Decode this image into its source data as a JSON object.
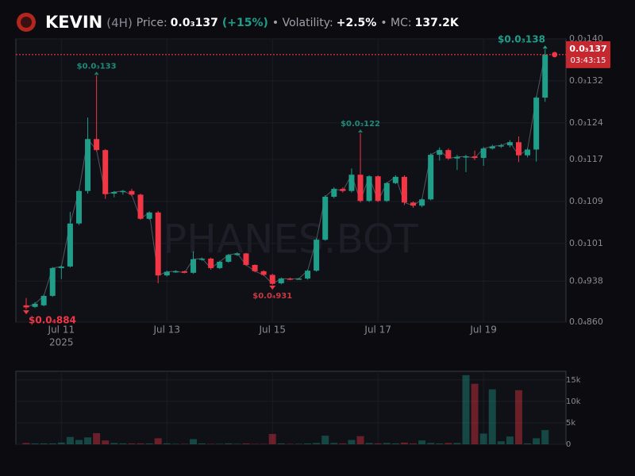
{
  "header": {
    "name": "KEVIN",
    "interval": "(4H)",
    "price_label": "Price:",
    "price": "0.0₃137",
    "change": "(+15%)",
    "volatility_label": "• Volatility:",
    "volatility": "+2.5%",
    "mc_label": "• MC:",
    "mc": "137.2K"
  },
  "watermark": "PHANES.BOT",
  "chart_data": {
    "type": "candlestick",
    "categories": [
      null,
      null,
      null,
      null,
      "Jul 11",
      null,
      null,
      null,
      null,
      null,
      null,
      null,
      null,
      null,
      null,
      null,
      "Jul 13",
      null,
      null,
      null,
      null,
      null,
      null,
      null,
      null,
      null,
      null,
      null,
      "Jul 15",
      null,
      null,
      null,
      null,
      null,
      null,
      null,
      null,
      null,
      null,
      null,
      "Jul 17",
      null,
      null,
      null,
      null,
      null,
      null,
      null,
      null,
      null,
      null,
      null,
      "Jul 19",
      null,
      null,
      null,
      null,
      null,
      null,
      null
    ],
    "year_label": "2025",
    "open": [
      8.92e-05,
      8.89e-05,
      8.92e-05,
      9.1e-05,
      9.63e-05,
      9.66e-05,
      0.0001048,
      0.000111,
      0.0001209,
      0.0001188,
      0.0001105,
      0.0001108,
      0.000111,
      0.0001103,
      0.0001057,
      0.0001069,
      9.49e-05,
      9.56e-05,
      9.57e-05,
      9.54e-05,
      9.8e-05,
      9.81e-05,
      9.63e-05,
      9.75e-05,
      9.88e-05,
      9.91e-05,
      9.69e-05,
      9.57e-05,
      9.5e-05,
      9.34e-05,
      9.43e-05,
      9.42e-05,
      9.43e-05,
      9.58e-05,
      0.0001017,
      0.0001099,
      0.0001114,
      0.000111,
      0.0001141,
      0.0001091,
      0.0001138,
      0.0001091,
      0.0001125,
      0.0001137,
      0.0001088,
      0.0001082,
      0.0001094,
      0.0001179,
      0.0001188,
      0.0001172,
      0.0001175,
      0.0001176,
      0.0001173,
      0.0001191,
      0.0001195,
      0.0001197,
      0.0001203,
      0.0001178,
      0.0001189,
      0.0001288
    ],
    "high": [
      9.06e-05,
      8.98e-05,
      9.12e-05,
      9.65e-05,
      9.68e-05,
      0.000107,
      0.0001113,
      0.000125,
      0.000133,
      0.000119,
      0.000111,
      0.0001112,
      0.0001114,
      0.0001105,
      0.0001071,
      0.0001072,
      9.58e-05,
      9.59e-05,
      9.58e-05,
      9.95e-05,
      9.83e-05,
      9.83e-05,
      9.77e-05,
      9.9e-05,
      9.93e-05,
      9.92e-05,
      9.7e-05,
      9.59e-05,
      9.52e-05,
      9.45e-05,
      9.45e-05,
      9.44e-05,
      9.6e-05,
      0.000102,
      0.0001102,
      0.0001117,
      0.0001117,
      0.0001153,
      0.000122,
      0.000114,
      0.000114,
      0.0001127,
      0.000114,
      0.000114,
      0.000109,
      0.0001096,
      0.0001182,
      0.0001193,
      0.0001191,
      0.0001179,
      0.0001179,
      0.0001187,
      0.0001194,
      0.0001198,
      0.00012,
      0.0001207,
      0.0001214,
      0.0001192,
      0.0001291,
      0.000138
    ],
    "low": [
      8.84e-05,
      8.87e-05,
      8.9e-05,
      9.08e-05,
      9.42e-05,
      9.64e-05,
      0.0001045,
      0.0001105,
      0.0001185,
      0.0001095,
      0.0001098,
      0.0001103,
      0.00011,
      0.0001055,
      0.0001055,
      9.34e-05,
      9.47e-05,
      9.54e-05,
      9.53e-05,
      9.52e-05,
      9.77e-05,
      9.6e-05,
      9.61e-05,
      9.73e-05,
      9.86e-05,
      9.67e-05,
      9.55e-05,
      9.48e-05,
      9.31e-05,
      9.32e-05,
      9.4e-05,
      9.41e-05,
      9.41e-05,
      9.56e-05,
      0.0001015,
      0.0001096,
      0.0001107,
      0.0001107,
      0.0001088,
      0.0001089,
      0.0001089,
      0.0001089,
      0.0001123,
      0.0001083,
      0.0001078,
      0.0001079,
      0.0001092,
      0.0001168,
      0.0001169,
      0.000115,
      0.0001146,
      0.0001169,
      0.0001158,
      0.0001189,
      0.0001192,
      0.0001193,
      0.0001165,
      0.0001174,
      0.0001166,
      0.000128
    ],
    "close": [
      8.88e-05,
      8.95e-05,
      9.1e-05,
      9.63e-05,
      9.66e-05,
      0.0001048,
      0.000111,
      0.0001209,
      0.0001188,
      0.0001104,
      0.0001108,
      0.000111,
      0.0001103,
      0.0001057,
      0.0001069,
      9.49e-05,
      9.56e-05,
      9.57e-05,
      9.54e-05,
      9.8e-05,
      9.81e-05,
      9.63e-05,
      9.75e-05,
      9.88e-05,
      9.91e-05,
      9.69e-05,
      9.57e-05,
      9.5e-05,
      9.33e-05,
      9.43e-05,
      9.42e-05,
      9.43e-05,
      9.58e-05,
      0.0001017,
      0.0001099,
      0.0001114,
      0.000111,
      0.0001141,
      0.0001091,
      0.0001138,
      0.0001091,
      0.0001125,
      0.0001137,
      0.0001088,
      0.0001082,
      0.0001094,
      0.0001179,
      0.0001188,
      0.0001172,
      0.0001175,
      0.0001176,
      0.0001173,
      0.0001191,
      0.0001195,
      0.0001197,
      0.0001203,
      0.0001178,
      0.0001189,
      0.0001288,
      0.000137
    ],
    "volume": [
      300,
      200,
      200,
      200,
      400,
      1700,
      1000,
      1600,
      2600,
      900,
      300,
      200,
      200,
      200,
      200,
      1400,
      200,
      100,
      100,
      1200,
      200,
      100,
      100,
      200,
      100,
      200,
      100,
      100,
      2400,
      200,
      100,
      100,
      200,
      300,
      2000,
      300,
      200,
      1000,
      1900,
      300,
      200,
      300,
      200,
      400,
      200,
      900,
      300,
      200,
      300,
      300,
      16100,
      14100,
      2500,
      12800,
      700,
      1800,
      12600,
      200,
      1400,
      3300
    ],
    "up_color": "#1f9e89",
    "down_color": "#f23645",
    "ylim": [
      8.6e-05,
      0.00014
    ],
    "yticks": [
      {
        "value": 0.00014,
        "label": "0.0₃140"
      },
      {
        "value": 0.000132,
        "label": "0.0₃132"
      },
      {
        "value": 0.000124,
        "label": "0.0₃124"
      },
      {
        "value": 0.000117,
        "label": "0.0₃117"
      },
      {
        "value": 0.000109,
        "label": "0.0₃109"
      },
      {
        "value": 0.000101,
        "label": "0.0₃101"
      },
      {
        "value": 9.38e-05,
        "label": "0.0₄938"
      },
      {
        "value": 8.6e-05,
        "label": "0.0₄860"
      }
    ],
    "volume_ylim": [
      0,
      17000
    ],
    "volume_yticks": [
      {
        "value": 15000,
        "label": "15k"
      },
      {
        "value": 10000,
        "label": "10k"
      },
      {
        "value": 5000,
        "label": "5k"
      },
      0
    ],
    "grid": true,
    "annotations": [
      {
        "label": "$0.0₃133",
        "value": 0.000133
      },
      {
        "label": "$0.0₃122",
        "value": 0.000122
      },
      {
        "label": "$0.0₃138",
        "value": 0.000138
      },
      {
        "label": "$0.0₄884",
        "value": 8.84e-05
      },
      {
        "label": "$0.0₄931",
        "value": 9.31e-05
      }
    ],
    "current": {
      "value": 0.000137,
      "label": "0.0₃137",
      "countdown": "03:43:15"
    }
  }
}
